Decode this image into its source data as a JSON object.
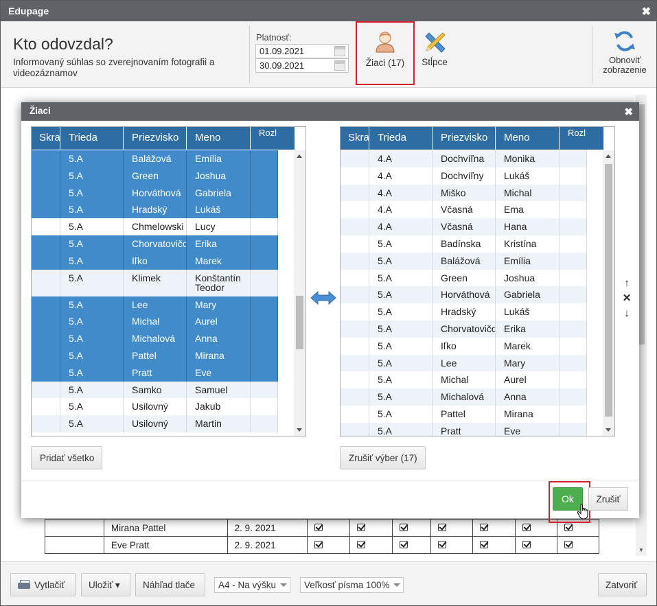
{
  "window": {
    "title": "Edupage"
  },
  "header": {
    "title": "Kto odovzdal?",
    "subtitle": "Informovaný súhlas so zverejnovaním fotografii a videozáznamov",
    "validity_label": "Platnosť:",
    "date_from": "01.09.2021",
    "date_to": "30.09.2021",
    "students_button": "Žiaci (17)",
    "columns_button": "Stĺpce",
    "refresh_button": "Obnoviť zobrazenie"
  },
  "background_table": {
    "rows": [
      {
        "name": "Mirana Pattel",
        "date": "2. 9. 2021"
      },
      {
        "name": "Eve Pratt",
        "date": "2. 9. 2021"
      }
    ]
  },
  "bottom": {
    "print": "Vytlačiť",
    "save": "Uložiť ▾",
    "preview": "Náhľad tlače",
    "page_format": "A4 - Na výšku",
    "font_size": "Veľkosť písma 100%",
    "close": "Zatvoriť"
  },
  "modal": {
    "title": "Žiaci",
    "columns": [
      "Skra",
      "Trieda",
      "Priezvisko",
      "Meno",
      "Rozl meno"
    ],
    "left_rows": [
      {
        "trieda": "5.A",
        "priezvisko": "Balážová",
        "meno": "Emília",
        "selected": true
      },
      {
        "trieda": "5.A",
        "priezvisko": "Green",
        "meno": "Joshua",
        "selected": true
      },
      {
        "trieda": "5.A",
        "priezvisko": "Horváthová",
        "meno": "Gabriela",
        "selected": true
      },
      {
        "trieda": "5.A",
        "priezvisko": "Hradský",
        "meno": "Lukáš",
        "selected": true
      },
      {
        "trieda": "5.A",
        "priezvisko": "Chmelowski",
        "meno": "Lucy",
        "selected": false
      },
      {
        "trieda": "5.A",
        "priezvisko": "Chorvatovičová",
        "meno": "Erika",
        "selected": true
      },
      {
        "trieda": "5.A",
        "priezvisko": "Iľko",
        "meno": "Marek",
        "selected": true
      },
      {
        "trieda": "5.A",
        "priezvisko": "Klimek",
        "meno": "Konštantín Teodor",
        "selected": false
      },
      {
        "trieda": "5.A",
        "priezvisko": "Lee",
        "meno": "Mary",
        "selected": true
      },
      {
        "trieda": "5.A",
        "priezvisko": "Michal",
        "meno": "Aurel",
        "selected": true
      },
      {
        "trieda": "5.A",
        "priezvisko": "Michalová",
        "meno": "Anna",
        "selected": true
      },
      {
        "trieda": "5.A",
        "priezvisko": "Pattel",
        "meno": "Mirana",
        "selected": true
      },
      {
        "trieda": "5.A",
        "priezvisko": "Pratt",
        "meno": "Eve",
        "selected": true
      },
      {
        "trieda": "5.A",
        "priezvisko": "Samko",
        "meno": "Samuel",
        "selected": false
      },
      {
        "trieda": "5.A",
        "priezvisko": "Usilovný",
        "meno": "Jakub",
        "selected": false
      },
      {
        "trieda": "5.A",
        "priezvisko": "Usilovný",
        "meno": "Martin",
        "selected": false
      }
    ],
    "right_rows": [
      {
        "trieda": "4.A",
        "priezvisko": "Dochvíľna",
        "meno": "Monika"
      },
      {
        "trieda": "4.A",
        "priezvisko": "Dochvíľny",
        "meno": "Lukáš"
      },
      {
        "trieda": "4.A",
        "priezvisko": "Miško",
        "meno": "Michal"
      },
      {
        "trieda": "4.A",
        "priezvisko": "Včasná",
        "meno": "Ema"
      },
      {
        "trieda": "4.A",
        "priezvisko": "Včasná",
        "meno": "Hana"
      },
      {
        "trieda": "5.A",
        "priezvisko": "Badínska",
        "meno": "Kristína"
      },
      {
        "trieda": "5.A",
        "priezvisko": "Balážová",
        "meno": "Emília"
      },
      {
        "trieda": "5.A",
        "priezvisko": "Green",
        "meno": "Joshua"
      },
      {
        "trieda": "5.A",
        "priezvisko": "Horváthová",
        "meno": "Gabriela"
      },
      {
        "trieda": "5.A",
        "priezvisko": "Hradský",
        "meno": "Lukáš"
      },
      {
        "trieda": "5.A",
        "priezvisko": "Chorvatovičová",
        "meno": "Erika"
      },
      {
        "trieda": "5.A",
        "priezvisko": "Iľko",
        "meno": "Marek"
      },
      {
        "trieda": "5.A",
        "priezvisko": "Lee",
        "meno": "Mary"
      },
      {
        "trieda": "5.A",
        "priezvisko": "Michal",
        "meno": "Aurel"
      },
      {
        "trieda": "5.A",
        "priezvisko": "Michalová",
        "meno": "Anna"
      },
      {
        "trieda": "5.A",
        "priezvisko": "Pattel",
        "meno": "Mirana"
      },
      {
        "trieda": "5.A",
        "priezvisko": "Pratt",
        "meno": "Eve"
      }
    ],
    "add_all_button": "Pridať všetko",
    "clear_selection_button": "Zrušiť výber (17)",
    "ok_button": "Ok",
    "cancel_button": "Zrušiť"
  },
  "colors": {
    "title_bar": "#5f6266",
    "grid_header": "#2e6da4",
    "selected_row": "#428bca",
    "ok_green": "#4cae4c",
    "highlight_red": "#d8202a"
  }
}
